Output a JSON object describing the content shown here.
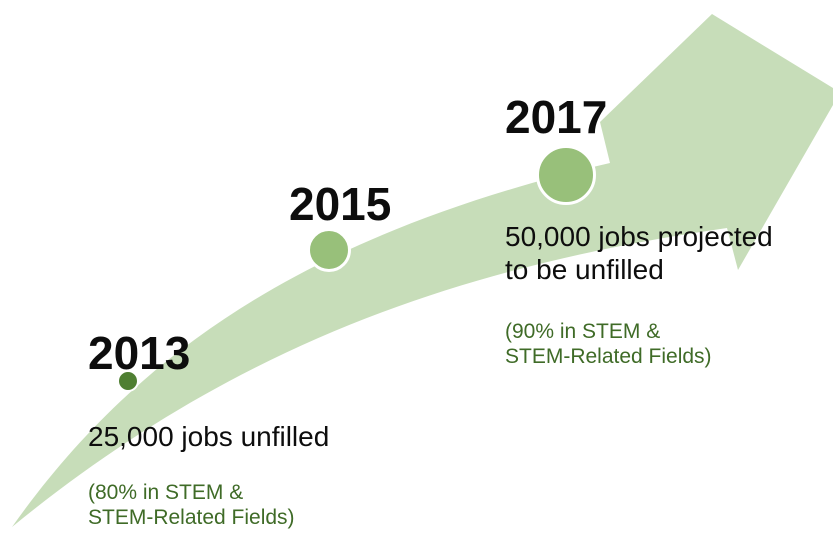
{
  "colors": {
    "arrow_fill": "#c7ddb9",
    "dot_fill": "#98c07a",
    "dot_small_fill": "#4f7f32",
    "dot_border": "#ffffff",
    "year_text": "#0d0d0d",
    "sub_text": "#3f6b27"
  },
  "timeline": {
    "milestones": [
      {
        "year": "2013",
        "main_line1": "25,000 jobs unfilled",
        "sub_line1": "(80% in STEM &",
        "sub_line2": "STEM-Related Fields)"
      },
      {
        "year": "2015"
      },
      {
        "year": "2017",
        "main_line1": "50,000 jobs projected",
        "main_line2": "to be unfilled",
        "sub_line1": "(90% in STEM &",
        "sub_line2": "STEM-Related Fields)"
      }
    ]
  }
}
